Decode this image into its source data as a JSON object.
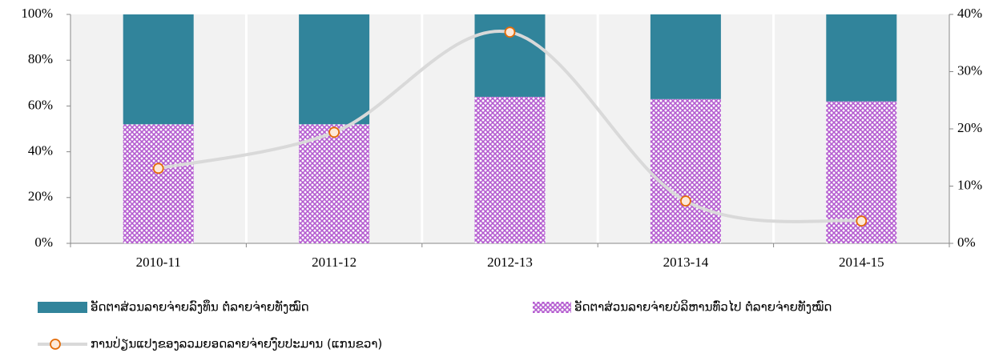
{
  "chart_data": {
    "type": "bar",
    "stacked": true,
    "categories": [
      "2010-11",
      "2011-12",
      "2012-13",
      "2013-14",
      "2014-15"
    ],
    "series": [
      {
        "name": "ອັດຕາສ່ວນລາຍຈ່າຍບໍລິຫານທົ່ວໄປ ຕໍ່ລາຍຈ່າຍທັງໝົດ",
        "color": "#b45cd0",
        "pattern": "crosshatch",
        "values": [
          52,
          52,
          64,
          63,
          62
        ]
      },
      {
        "name": "ອັດຕາສ່ວນລາຍຈ່າຍລົງທຶນ ຕໍ່ລາຍຈ່າຍທັງໝົດ",
        "color": "#31849b",
        "values": [
          48,
          48,
          36,
          37,
          38
        ]
      },
      {
        "name": "ການປ່ຽນແປງຂອງລວມຍອດລາຍຈ່າຍງົບປະມານ (ແກນຂວາ)",
        "type": "line",
        "axis": "y2",
        "color": "#d9d9d9",
        "marker_color": "#e36c09",
        "values": [
          13.1,
          19.4,
          36.9,
          7.4,
          3.9
        ]
      }
    ],
    "ylim": [
      0,
      100
    ],
    "yticks": [
      {
        "value": 0,
        "label": "0%"
      },
      {
        "value": 20,
        "label": "20%"
      },
      {
        "value": 40,
        "label": "40%"
      },
      {
        "value": 60,
        "label": "60%"
      },
      {
        "value": 80,
        "label": "80%"
      },
      {
        "value": 100,
        "label": "100%"
      }
    ],
    "y2lim": [
      0,
      40
    ],
    "y2ticks": [
      {
        "value": 0,
        "label": "0%"
      },
      {
        "value": 10,
        "label": "10%"
      },
      {
        "value": 20,
        "label": "20%"
      },
      {
        "value": 30,
        "label": "30%"
      },
      {
        "value": 40,
        "label": "40%"
      }
    ],
    "legend": "bottom"
  }
}
